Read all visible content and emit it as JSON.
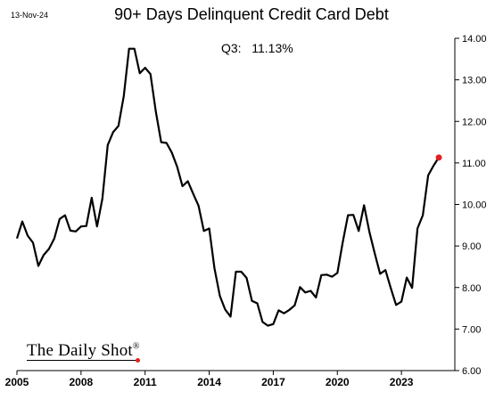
{
  "header": {
    "date": "13-Nov-24",
    "title": "90+ Days Delinquent Credit Card Debt",
    "annotation_label": "Q3:",
    "annotation_value": "11.13%"
  },
  "brand": {
    "name": "The Daily Shot",
    "mark": "®"
  },
  "colors": {
    "line": "#000000",
    "last_point": "#e02020"
  },
  "chart_data": {
    "type": "line",
    "title": "90+ Days Delinquent Credit Card Debt",
    "xlabel": "",
    "ylabel": "",
    "x_ticks": [
      2005,
      2008,
      2011,
      2014,
      2017,
      2020,
      2023
    ],
    "y_ticks": [
      "6.00",
      "7.00",
      "8.00",
      "9.00",
      "10.00",
      "11.00",
      "12.00",
      "13.00",
      "14.00"
    ],
    "xlim": [
      2005,
      2025.5
    ],
    "ylim": [
      6,
      14
    ],
    "y_axis_side": "right",
    "grid": false,
    "series": [
      {
        "x": [
          2005.0,
          2005.25,
          2005.5,
          2005.75,
          2006.0,
          2006.25,
          2006.5,
          2006.75,
          2007.0,
          2007.25,
          2007.5,
          2007.75,
          2008.0,
          2008.25,
          2008.5,
          2008.75,
          2009.0,
          2009.25,
          2009.5,
          2009.75,
          2010.0,
          2010.25,
          2010.5,
          2010.75,
          2011.0,
          2011.25,
          2011.5,
          2011.75,
          2012.0,
          2012.25,
          2012.5,
          2012.75,
          2013.0,
          2013.25,
          2013.5,
          2013.75,
          2014.0,
          2014.25,
          2014.5,
          2014.75,
          2015.0,
          2015.25,
          2015.5,
          2015.75,
          2016.0,
          2016.25,
          2016.5,
          2016.75,
          2017.0,
          2017.25,
          2017.5,
          2017.75,
          2018.0,
          2018.25,
          2018.5,
          2018.75,
          2019.0,
          2019.25,
          2019.5,
          2019.75,
          2020.0,
          2020.25,
          2020.5,
          2020.75,
          2021.0,
          2021.25,
          2021.5,
          2021.75,
          2022.0,
          2022.25,
          2022.5,
          2022.75,
          2023.0,
          2023.25,
          2023.5,
          2023.75,
          2024.0,
          2024.25,
          2024.5
        ],
        "y": [
          9.18,
          9.59,
          9.25,
          9.08,
          8.52,
          8.78,
          8.93,
          9.18,
          9.65,
          9.74,
          9.37,
          9.35,
          9.47,
          9.48,
          10.16,
          9.47,
          10.14,
          11.43,
          11.74,
          11.89,
          12.61,
          13.75,
          13.75,
          13.16,
          13.29,
          13.14,
          12.24,
          11.5,
          11.48,
          11.25,
          10.91,
          10.44,
          10.56,
          10.26,
          9.97,
          9.36,
          9.42,
          8.46,
          7.8,
          7.47,
          7.3,
          8.38,
          8.38,
          8.23,
          7.68,
          7.62,
          7.17,
          7.08,
          7.12,
          7.45,
          7.38,
          7.46,
          7.57,
          8.01,
          7.88,
          7.92,
          7.76,
          8.3,
          8.31,
          8.26,
          8.35,
          9.09,
          9.74,
          9.75,
          9.36,
          9.98,
          9.34,
          8.82,
          8.33,
          8.42,
          7.99,
          7.58,
          7.66,
          8.24,
          7.99,
          9.42,
          9.74,
          10.7,
          10.93
        ],
        "last_point": {
          "x": 2024.75,
          "y": 11.13
        }
      }
    ]
  }
}
